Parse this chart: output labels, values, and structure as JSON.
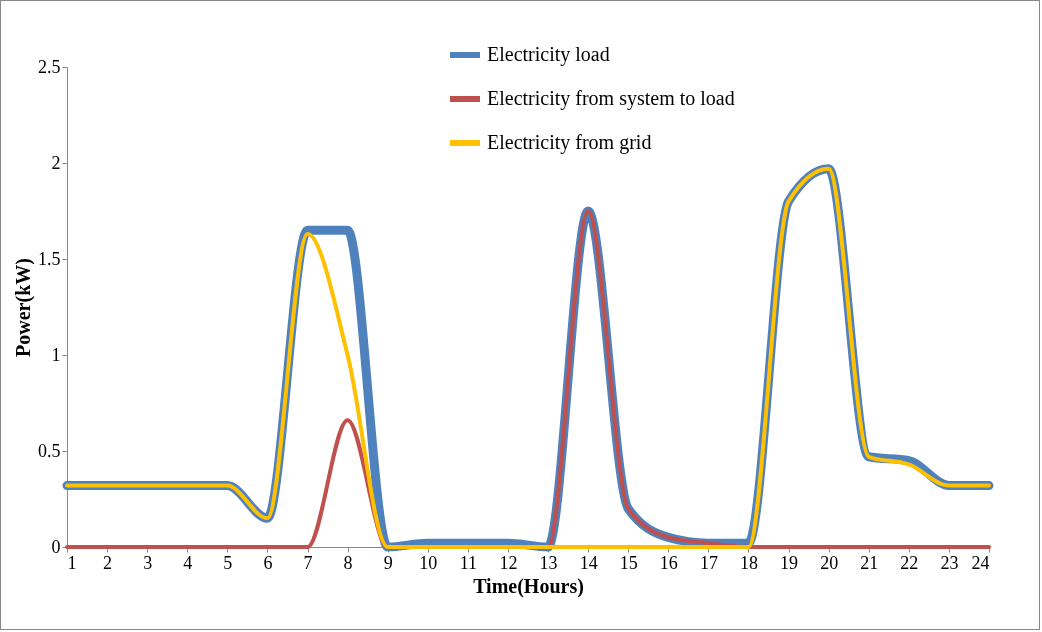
{
  "chart_data": {
    "type": "line",
    "xlabel": "Time(Hours)",
    "ylabel": "Power(kW)",
    "x": [
      1,
      2,
      3,
      4,
      5,
      6,
      7,
      8,
      9,
      10,
      11,
      12,
      13,
      14,
      15,
      16,
      17,
      18,
      19,
      20,
      21,
      22,
      23,
      24
    ],
    "xlim": [
      1,
      24
    ],
    "xticks": [
      1,
      2,
      3,
      4,
      5,
      6,
      7,
      8,
      9,
      10,
      11,
      12,
      13,
      14,
      15,
      16,
      17,
      18,
      19,
      20,
      21,
      22,
      23,
      24
    ],
    "ylim": [
      0,
      2.5
    ],
    "yticks": [
      0,
      0.5,
      1,
      1.5,
      2,
      2.5
    ],
    "grid": false,
    "legend": "top",
    "marker": "none",
    "line_style": "solid",
    "series": [
      {
        "name": "Electricity load",
        "color": "#4f81bd",
        "values": [
          0.32,
          0.32,
          0.32,
          0.32,
          0.32,
          0.15,
          1.65,
          1.65,
          0,
          0.02,
          0.02,
          0.02,
          0,
          1.75,
          0.2,
          0.05,
          0.02,
          0.02,
          1.8,
          1.97,
          0.47,
          0.45,
          0.32,
          0.32
        ]
      },
      {
        "name": "Electricity from system to load",
        "color": "#c0504d",
        "values": [
          0,
          0,
          0,
          0,
          0,
          0,
          0,
          0.66,
          0,
          0,
          0,
          0,
          0,
          1.75,
          0.2,
          0.05,
          0.02,
          0,
          0,
          0,
          0,
          0,
          0,
          0
        ]
      },
      {
        "name": "Electricity from grid",
        "color": "#ffc000",
        "values": [
          0.32,
          0.32,
          0.32,
          0.32,
          0.32,
          0.15,
          1.63,
          1,
          0,
          0,
          0,
          0,
          0,
          0,
          0,
          0,
          0,
          0,
          1.8,
          1.97,
          0.47,
          0.43,
          0.32,
          0.32
        ]
      }
    ]
  }
}
